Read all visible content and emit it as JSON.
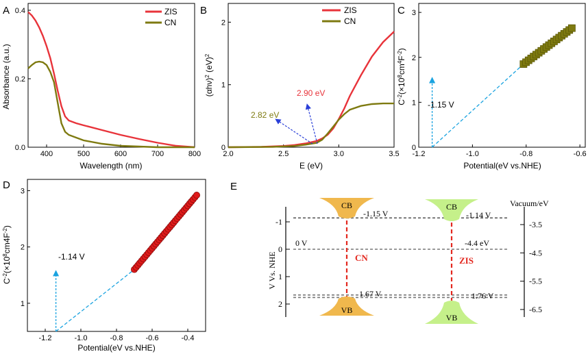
{
  "chart_data": [
    {
      "panel": "A",
      "type": "line",
      "xlabel": "Wavelength (nm)",
      "ylabel": "Absorbance (a.u.)",
      "xlim": [
        350,
        800
      ],
      "ylim": [
        0,
        0.42
      ],
      "xticks": [
        "400",
        "500",
        "600",
        "700",
        "800"
      ],
      "yticks": [
        "0.0",
        "0.2",
        "0.4"
      ],
      "legend": "top-right",
      "series": [
        {
          "name": "ZIS",
          "color": "#e8333a",
          "points": [
            [
              350,
              0.395
            ],
            [
              360,
              0.385
            ],
            [
              370,
              0.37
            ],
            [
              380,
              0.35
            ],
            [
              390,
              0.325
            ],
            [
              400,
              0.295
            ],
            [
              410,
              0.26
            ],
            [
              420,
              0.215
            ],
            [
              430,
              0.165
            ],
            [
              440,
              0.12
            ],
            [
              450,
              0.09
            ],
            [
              460,
              0.078
            ],
            [
              480,
              0.07
            ],
            [
              500,
              0.064
            ],
            [
              550,
              0.05
            ],
            [
              600,
              0.036
            ],
            [
              650,
              0.024
            ],
            [
              700,
              0.013
            ],
            [
              750,
              0.004
            ],
            [
              800,
              0.0
            ]
          ]
        },
        {
          "name": "CN",
          "color": "#7e7a10",
          "points": [
            [
              350,
              0.23
            ],
            [
              360,
              0.24
            ],
            [
              370,
              0.248
            ],
            [
              380,
              0.25
            ],
            [
              390,
              0.248
            ],
            [
              400,
              0.24
            ],
            [
              410,
              0.22
            ],
            [
              420,
              0.19
            ],
            [
              430,
              0.13
            ],
            [
              440,
              0.07
            ],
            [
              450,
              0.045
            ],
            [
              460,
              0.036
            ],
            [
              480,
              0.028
            ],
            [
              500,
              0.02
            ],
            [
              550,
              0.01
            ],
            [
              600,
              0.004
            ],
            [
              700,
              0.0
            ],
            [
              800,
              0.0
            ]
          ]
        }
      ]
    },
    {
      "panel": "B",
      "type": "line",
      "xlabel": "E (eV)",
      "ylabel": "(αhν)² (eV)²",
      "xlim": [
        2.0,
        3.5
      ],
      "ylim": [
        0,
        2.3
      ],
      "xticks": [
        "2.0",
        "2.5",
        "3.0",
        "3.5"
      ],
      "yticks": [
        "0",
        "1",
        "2"
      ],
      "legend": "top-right",
      "annotations": [
        {
          "text": "2.90 eV",
          "color": "#e8333a",
          "arrow_to": 2.9
        },
        {
          "text": "2.82 eV",
          "color": "#7e7a10",
          "arrow_to": 2.82
        }
      ],
      "series": [
        {
          "name": "ZIS",
          "color": "#e8333a",
          "points": [
            [
              2.0,
              0.0
            ],
            [
              2.3,
              0.005
            ],
            [
              2.5,
              0.02
            ],
            [
              2.6,
              0.035
            ],
            [
              2.7,
              0.06
            ],
            [
              2.8,
              0.1
            ],
            [
              2.85,
              0.14
            ],
            [
              2.9,
              0.2
            ],
            [
              2.95,
              0.3
            ],
            [
              3.0,
              0.45
            ],
            [
              3.05,
              0.62
            ],
            [
              3.1,
              0.82
            ],
            [
              3.2,
              1.15
            ],
            [
              3.3,
              1.45
            ],
            [
              3.4,
              1.68
            ],
            [
              3.5,
              1.85
            ]
          ]
        },
        {
          "name": "CN",
          "color": "#7e7a10",
          "points": [
            [
              2.0,
              0.0
            ],
            [
              2.4,
              0.005
            ],
            [
              2.6,
              0.02
            ],
            [
              2.7,
              0.04
            ],
            [
              2.8,
              0.07
            ],
            [
              2.85,
              0.12
            ],
            [
              2.9,
              0.22
            ],
            [
              2.95,
              0.33
            ],
            [
              3.0,
              0.44
            ],
            [
              3.05,
              0.53
            ],
            [
              3.1,
              0.6
            ],
            [
              3.2,
              0.66
            ],
            [
              3.3,
              0.69
            ],
            [
              3.4,
              0.7
            ],
            [
              3.5,
              0.7
            ]
          ]
        }
      ]
    },
    {
      "panel": "C",
      "type": "scatter",
      "xlabel": "Potential(eV vs.NHE)",
      "ylabel": "C⁻²(×10⁸cm⁴F⁻²)",
      "xlim": [
        -1.2,
        -0.58
      ],
      "ylim": [
        0,
        3.2
      ],
      "xticks": [
        "-1.2",
        "-1.0",
        "-0.8",
        "-0.6"
      ],
      "yticks": [
        "0",
        "1",
        "2",
        "3"
      ],
      "annotation": "-1.15 V",
      "intercept": -1.15,
      "series": [
        {
          "name": "CN",
          "color": "#7e7a10",
          "marker": "square",
          "x_start": -0.81,
          "x_end": -0.63,
          "y_start": 1.85,
          "y_end": 2.65,
          "count": 20
        }
      ]
    },
    {
      "panel": "D",
      "type": "scatter",
      "xlabel": "Potential(eV vs.NHE)",
      "ylabel": "C⁻²(×10⁸cm4F⁻²)",
      "xlim": [
        -1.3,
        -0.3
      ],
      "ylim": [
        0.5,
        3.2
      ],
      "xticks": [
        "-1.2",
        "-1.0",
        "-0.8",
        "-0.6",
        "-0.4"
      ],
      "yticks": [
        "1",
        "2",
        "3"
      ],
      "annotation": "-1.14 V",
      "intercept": -1.14,
      "series": [
        {
          "name": "ZIS",
          "color": "#e01a1a",
          "marker": "circle",
          "x_start": -0.7,
          "x_end": -0.35,
          "y_start": 1.6,
          "y_end": 2.92,
          "count": 36
        }
      ]
    },
    {
      "panel": "E",
      "type": "band-diagram",
      "left_axis_label": "V Vs. NHE",
      "left_ticks": [
        "-1",
        "0",
        "1",
        "2"
      ],
      "right_axis_label": "Vacuum/eV",
      "right_ticks": [
        "-3.5",
        "-4.5",
        "-5.5",
        "-6.5"
      ],
      "materials": [
        {
          "name": "CN",
          "cb": -1.15,
          "vb": 1.67,
          "cb_label": "-1.15 V",
          "vb_label": "1.67 V",
          "color": "#f0b84d",
          "name_color": "#e3271e"
        },
        {
          "name": "ZIS",
          "cb": -1.14,
          "vb": 1.76,
          "cb_label": "-1.14 V",
          "vb_label": "1.76 V",
          "color": "#c5f08a",
          "name_color": "#e3271e"
        }
      ],
      "zero_label": "0 V",
      "vacuum_label": "-4.4 eV",
      "cb_text": "CB",
      "vb_text": "VB"
    }
  ]
}
